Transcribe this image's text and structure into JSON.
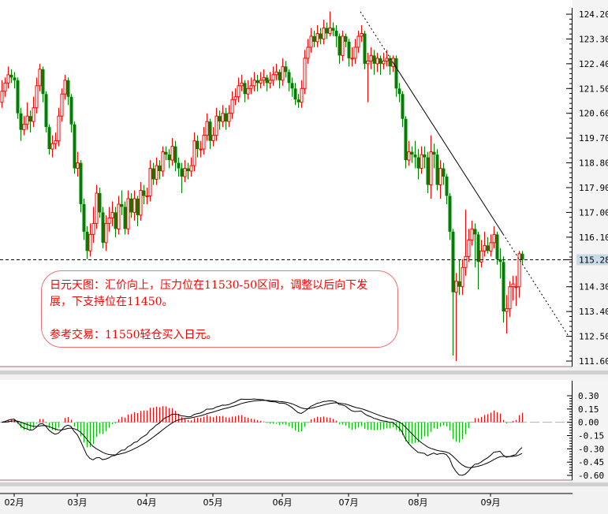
{
  "chart_data": [
    {
      "type": "candlestick",
      "price_axis": {
        "ticks": [
          "124.20",
          "123.30",
          "122.40",
          "121.50",
          "120.60",
          "119.70",
          "118.80",
          "117.90",
          "117.00",
          "116.10",
          "115.28",
          "114.30",
          "113.40",
          "112.50",
          "111.60"
        ],
        "range": [
          111.6,
          124.2
        ]
      },
      "current_price": "115.28",
      "current_price_line": 115.28,
      "colors": {
        "up": "#ff0000",
        "down": "#008000",
        "current_label_bg": "#c8dce8",
        "trendline": "#000000",
        "note_border": "#f07070",
        "note_text": "#ff0000"
      },
      "trendline": {
        "from": [
          113.75,
          124.29
        ],
        "to": [
          179.5,
          112.55
        ],
        "solid_between_index": [
          124,
          159
        ]
      },
      "months": [
        {
          "label": "02月",
          "index": 4
        },
        {
          "label": "03月",
          "index": 24
        },
        {
          "label": "04月",
          "index": 46
        },
        {
          "label": "05月",
          "index": 67
        },
        {
          "label": "06月",
          "index": 89
        },
        {
          "label": "07月",
          "index": 110
        },
        {
          "label": "08月",
          "index": 132
        },
        {
          "label": "09月",
          "index": 155
        }
      ],
      "ohlc": [
        [
          121.0,
          121.8,
          120.8,
          121.4
        ],
        [
          121.4,
          121.9,
          121.2,
          121.7
        ],
        [
          121.7,
          122.3,
          121.5,
          122.0
        ],
        [
          122.0,
          122.2,
          121.7,
          121.9
        ],
        [
          121.9,
          122.1,
          121.5,
          121.8
        ],
        [
          121.8,
          121.9,
          120.4,
          120.6
        ],
        [
          120.6,
          120.8,
          119.6,
          120.0
        ],
        [
          120.0,
          120.5,
          119.8,
          120.2
        ],
        [
          120.2,
          121.0,
          120.0,
          120.5
        ],
        [
          120.5,
          120.7,
          119.9,
          120.3
        ],
        [
          120.3,
          121.2,
          120.1,
          120.8
        ],
        [
          120.8,
          121.9,
          120.6,
          121.6
        ],
        [
          121.6,
          122.4,
          121.4,
          122.2
        ],
        [
          122.2,
          122.3,
          121.0,
          121.3
        ],
        [
          121.3,
          121.4,
          119.9,
          120.1
        ],
        [
          120.1,
          120.2,
          119.1,
          119.3
        ],
        [
          119.3,
          119.8,
          119.0,
          119.5
        ],
        [
          119.5,
          119.9,
          119.3,
          119.6
        ],
        [
          119.6,
          120.8,
          119.4,
          120.5
        ],
        [
          120.5,
          121.5,
          120.3,
          121.3
        ],
        [
          121.3,
          122.0,
          121.1,
          121.8
        ],
        [
          121.8,
          121.9,
          120.9,
          121.2
        ],
        [
          121.2,
          121.3,
          119.9,
          120.2
        ],
        [
          120.2,
          120.3,
          118.4,
          118.6
        ],
        [
          118.6,
          119.2,
          118.3,
          118.8
        ],
        [
          118.8,
          118.9,
          117.0,
          117.3
        ],
        [
          117.3,
          117.5,
          116.0,
          116.3
        ],
        [
          116.3,
          116.5,
          115.3,
          115.6
        ],
        [
          115.6,
          116.6,
          115.4,
          116.2
        ],
        [
          116.2,
          117.2,
          115.9,
          116.6
        ],
        [
          116.6,
          118.0,
          116.4,
          117.7
        ],
        [
          117.7,
          117.9,
          116.8,
          117.0
        ],
        [
          117.0,
          117.2,
          115.7,
          115.9
        ],
        [
          115.9,
          116.9,
          115.6,
          116.6
        ],
        [
          116.6,
          117.2,
          116.3,
          116.8
        ],
        [
          116.8,
          117.4,
          116.5,
          117.0
        ],
        [
          117.0,
          117.2,
          116.1,
          116.4
        ],
        [
          116.4,
          117.6,
          116.2,
          117.3
        ],
        [
          117.3,
          117.8,
          116.9,
          117.2
        ],
        [
          117.2,
          117.4,
          116.2,
          116.4
        ],
        [
          116.4,
          117.8,
          116.2,
          117.5
        ],
        [
          117.5,
          117.7,
          116.8,
          117.0
        ],
        [
          117.0,
          117.8,
          116.7,
          117.5
        ],
        [
          117.5,
          117.6,
          116.5,
          116.9
        ],
        [
          116.9,
          118.1,
          116.7,
          117.8
        ],
        [
          117.8,
          118.0,
          117.3,
          117.6
        ],
        [
          117.6,
          117.9,
          117.3,
          117.6
        ],
        [
          117.6,
          118.9,
          117.4,
          118.6
        ],
        [
          118.6,
          118.8,
          118.0,
          118.2
        ],
        [
          118.2,
          119.0,
          118.0,
          118.7
        ],
        [
          118.7,
          118.9,
          118.2,
          118.5
        ],
        [
          118.5,
          119.4,
          118.3,
          119.2
        ],
        [
          119.2,
          119.4,
          118.9,
          119.1
        ],
        [
          119.1,
          119.3,
          118.6,
          118.9
        ],
        [
          118.9,
          119.7,
          118.7,
          119.4
        ],
        [
          119.4,
          119.6,
          118.5,
          118.8
        ],
        [
          118.8,
          119.0,
          118.3,
          118.6
        ],
        [
          118.6,
          118.8,
          117.7,
          118.3
        ],
        [
          118.3,
          118.9,
          118.1,
          118.6
        ],
        [
          118.6,
          118.8,
          118.2,
          118.5
        ],
        [
          118.5,
          119.0,
          118.3,
          118.7
        ],
        [
          118.7,
          119.9,
          118.5,
          119.6
        ],
        [
          119.6,
          119.8,
          119.0,
          119.3
        ],
        [
          119.3,
          119.6,
          119.0,
          119.3
        ],
        [
          119.3,
          120.1,
          119.1,
          119.8
        ],
        [
          119.8,
          120.6,
          119.6,
          120.3
        ],
        [
          120.3,
          120.4,
          119.3,
          119.6
        ],
        [
          119.6,
          120.1,
          119.4,
          119.8
        ],
        [
          119.8,
          120.8,
          119.6,
          120.5
        ],
        [
          120.5,
          120.7,
          120.0,
          120.3
        ],
        [
          120.3,
          120.9,
          120.1,
          120.6
        ],
        [
          120.6,
          120.8,
          120.0,
          120.3
        ],
        [
          120.3,
          120.9,
          120.1,
          120.6
        ],
        [
          120.6,
          121.4,
          120.4,
          121.1
        ],
        [
          121.1,
          121.5,
          120.9,
          121.2
        ],
        [
          121.2,
          121.9,
          121.0,
          121.6
        ],
        [
          121.6,
          122.0,
          121.4,
          121.7
        ],
        [
          121.7,
          121.8,
          121.0,
          121.3
        ],
        [
          121.3,
          121.8,
          121.1,
          121.5
        ],
        [
          121.5,
          121.9,
          121.3,
          121.6
        ],
        [
          121.6,
          122.1,
          121.4,
          121.8
        ],
        [
          121.8,
          122.0,
          121.4,
          121.7
        ],
        [
          121.7,
          122.1,
          121.5,
          121.8
        ],
        [
          121.8,
          122.2,
          121.6,
          121.9
        ],
        [
          121.9,
          122.0,
          121.4,
          121.7
        ],
        [
          121.7,
          122.1,
          121.5,
          121.8
        ],
        [
          121.8,
          122.3,
          121.6,
          122.0
        ],
        [
          122.0,
          122.4,
          121.8,
          122.1
        ],
        [
          122.1,
          122.2,
          121.5,
          121.8
        ],
        [
          121.8,
          122.6,
          121.6,
          122.3
        ],
        [
          122.3,
          122.5,
          121.9,
          122.1
        ],
        [
          122.1,
          122.2,
          121.4,
          121.7
        ],
        [
          121.7,
          121.9,
          121.2,
          121.5
        ],
        [
          121.5,
          121.7,
          120.9,
          121.1
        ],
        [
          121.1,
          121.3,
          120.8,
          121.0
        ],
        [
          121.0,
          121.8,
          120.8,
          121.5
        ],
        [
          121.5,
          122.9,
          121.3,
          122.6
        ],
        [
          122.6,
          123.3,
          122.4,
          123.0
        ],
        [
          123.0,
          123.7,
          122.8,
          123.4
        ],
        [
          123.4,
          123.6,
          123.0,
          123.2
        ],
        [
          123.2,
          123.8,
          123.0,
          123.5
        ],
        [
          123.5,
          123.7,
          123.1,
          123.3
        ],
        [
          123.3,
          124.0,
          123.1,
          123.7
        ],
        [
          123.7,
          123.9,
          123.3,
          123.5
        ],
        [
          123.5,
          124.3,
          123.4,
          123.7
        ],
        [
          123.7,
          123.9,
          123.4,
          123.6
        ],
        [
          123.6,
          123.8,
          123.0,
          123.4
        ],
        [
          123.4,
          123.5,
          122.4,
          122.7
        ],
        [
          122.7,
          123.6,
          122.5,
          123.4
        ],
        [
          123.4,
          123.5,
          123.0,
          123.2
        ],
        [
          123.2,
          123.3,
          122.3,
          122.6
        ],
        [
          122.6,
          123.0,
          122.3,
          122.6
        ],
        [
          122.6,
          123.3,
          122.4,
          123.0
        ],
        [
          123.0,
          123.6,
          122.8,
          123.4
        ],
        [
          123.4,
          123.8,
          123.2,
          123.5
        ],
        [
          123.5,
          123.6,
          122.2,
          122.4
        ],
        [
          122.4,
          122.8,
          121.0,
          122.5
        ],
        [
          122.5,
          123.0,
          122.2,
          122.7
        ],
        [
          122.7,
          122.9,
          122.0,
          122.4
        ],
        [
          122.4,
          122.8,
          122.1,
          122.6
        ],
        [
          122.6,
          122.7,
          122.0,
          122.4
        ],
        [
          122.4,
          122.8,
          122.2,
          122.5
        ],
        [
          122.5,
          122.9,
          122.3,
          122.6
        ],
        [
          122.6,
          122.7,
          122.0,
          122.3
        ],
        [
          122.3,
          122.7,
          122.1,
          122.6
        ],
        [
          122.6,
          122.7,
          121.2,
          121.5
        ],
        [
          121.5,
          121.7,
          121.0,
          121.3
        ],
        [
          121.3,
          121.4,
          120.1,
          120.4
        ],
        [
          120.4,
          120.5,
          118.6,
          118.9
        ],
        [
          118.9,
          119.6,
          118.7,
          119.2
        ],
        [
          119.2,
          119.4,
          118.8,
          119.1
        ],
        [
          119.1,
          119.6,
          118.6,
          119.0
        ],
        [
          119.0,
          119.3,
          118.2,
          118.6
        ],
        [
          118.6,
          119.4,
          118.4,
          119.1
        ],
        [
          119.1,
          119.4,
          118.6,
          119.0
        ],
        [
          119.0,
          119.2,
          117.7,
          118.0
        ],
        [
          118.0,
          119.8,
          117.5,
          119.2
        ],
        [
          119.2,
          119.5,
          118.6,
          119.1
        ],
        [
          119.1,
          119.3,
          117.8,
          118.0
        ],
        [
          118.0,
          118.9,
          117.5,
          118.6
        ],
        [
          118.6,
          118.8,
          118.0,
          118.3
        ],
        [
          118.3,
          118.4,
          117.3,
          117.6
        ],
        [
          117.6,
          117.7,
          116.0,
          116.3
        ],
        [
          116.3,
          116.4,
          111.8,
          114.1
        ],
        [
          114.1,
          114.8,
          111.6,
          114.5
        ],
        [
          114.5,
          115.3,
          114.0,
          114.3
        ],
        [
          114.3,
          115.3,
          114.0,
          115.0
        ],
        [
          115.0,
          117.1,
          114.7,
          115.4
        ],
        [
          115.4,
          116.4,
          115.2,
          116.0
        ],
        [
          116.0,
          116.7,
          115.8,
          116.4
        ],
        [
          116.4,
          116.6,
          115.0,
          116.2
        ],
        [
          116.2,
          116.3,
          114.2,
          115.2
        ],
        [
          115.2,
          116.0,
          115.0,
          115.6
        ],
        [
          115.6,
          116.3,
          115.4,
          115.8
        ],
        [
          115.8,
          116.1,
          115.5,
          115.6
        ],
        [
          115.6,
          116.2,
          115.4,
          115.9
        ],
        [
          115.9,
          116.5,
          115.7,
          116.2
        ],
        [
          116.2,
          116.3,
          115.1,
          115.3
        ],
        [
          115.3,
          115.7,
          114.6,
          115.2
        ],
        [
          115.2,
          115.4,
          113.0,
          113.4
        ],
        [
          113.4,
          114.0,
          112.6,
          113.5
        ],
        [
          113.5,
          114.5,
          113.2,
          114.3
        ],
        [
          114.3,
          114.7,
          113.8,
          114.4
        ],
        [
          114.3,
          114.7,
          113.6,
          114.3
        ],
        [
          114.3,
          115.6,
          113.9,
          115.5
        ],
        [
          115.5,
          115.6,
          115.1,
          115.28
        ]
      ]
    },
    {
      "type": "macd",
      "axis": {
        "ticks": [
          "0.30",
          "0.15",
          "0.00",
          "-0.15",
          "-0.30",
          "-0.45",
          "-0.60"
        ],
        "range": [
          -0.6,
          0.3
        ]
      },
      "colors": {
        "positive": "#ff0000",
        "negative": "#00c000",
        "lines": "#000000",
        "zero": "#a8b0c0"
      }
    }
  ],
  "note": {
    "line1": "日元天图：汇价向上，压力位在11530-50区间，调整以后向下发展，下支持位在11450。",
    "line2": "参考交易：11550轻仓买入日元。"
  }
}
